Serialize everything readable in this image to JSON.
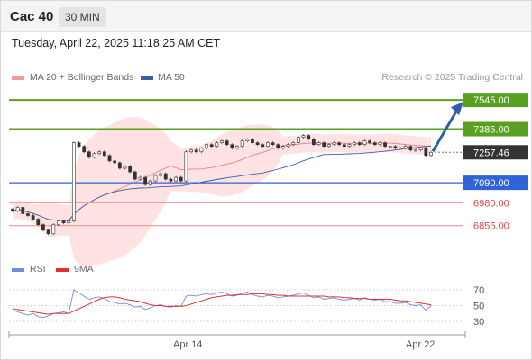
{
  "header": {
    "instrument": "Cac 40",
    "timeframe": "30 MIN"
  },
  "datetime": "Tuesday, April 22, 2025 11:18:25 AM CET",
  "legend": {
    "ma20": "MA 20 + Bollinger Bands",
    "ma50": "MA 50"
  },
  "credit": "Research © 2025 Trading Central",
  "rsi_legend": {
    "rsi": "RSI",
    "ma9": "9MA"
  },
  "colors": {
    "green": "#5aa020",
    "blue": "#2f63d6",
    "red": "#e54545",
    "current": "#333333",
    "band": "#ffdede",
    "ma50": "#3a5fa6",
    "rsi": "#6f8de0",
    "ma9": "#e03030"
  },
  "chart_data": [
    {
      "type": "candlestick",
      "title": "Cac 40",
      "ylim": [
        6680,
        7620
      ],
      "levels": [
        {
          "label": "7545.00",
          "value": 7545,
          "style": "green"
        },
        {
          "label": "7385.00",
          "value": 7385,
          "style": "green"
        },
        {
          "label": "7257.46",
          "value": 7257.46,
          "style": "current"
        },
        {
          "label": "7090.00",
          "value": 7090,
          "style": "blue"
        },
        {
          "label": "6980.00",
          "value": 6980,
          "style": "red"
        },
        {
          "label": "6855.00",
          "value": 6855,
          "style": "red"
        }
      ],
      "closes": [
        6935,
        6955,
        6920,
        6910,
        6890,
        6860,
        6830,
        6810,
        6860,
        6880,
        6870,
        6880,
        7310,
        7290,
        7260,
        7230,
        7250,
        7260,
        7240,
        7210,
        7200,
        7170,
        7180,
        7150,
        7110,
        7120,
        7080,
        7100,
        7130,
        7140,
        7110,
        7100,
        7120,
        7100,
        7260,
        7270,
        7260,
        7280,
        7300,
        7290,
        7310,
        7320,
        7300,
        7280,
        7290,
        7320,
        7330,
        7310,
        7300,
        7290,
        7310,
        7300,
        7280,
        7290,
        7300,
        7310,
        7340,
        7350,
        7330,
        7300,
        7310,
        7290,
        7300,
        7310,
        7300,
        7290,
        7300,
        7310,
        7300,
        7320,
        7310,
        7300,
        7310,
        7290,
        7290,
        7280,
        7280,
        7290,
        7270,
        7270,
        7280,
        7240,
        7257.46
      ],
      "x_ticks": [
        "Apr 14",
        "Apr 22"
      ]
    },
    {
      "type": "line",
      "title": "RSI",
      "series": [
        {
          "name": "RSI"
        },
        {
          "name": "9MA"
        }
      ],
      "ylim": [
        30,
        70
      ],
      "ticks": [
        70,
        50,
        30
      ],
      "rsi": [
        44,
        42,
        40,
        38,
        40,
        36,
        35,
        37,
        40,
        41,
        42,
        40,
        70,
        66,
        62,
        58,
        60,
        61,
        59,
        55,
        54,
        52,
        53,
        51,
        48,
        49,
        45,
        47,
        50,
        51,
        49,
        48,
        50,
        49,
        62,
        63,
        62,
        64,
        65,
        64,
        66,
        67,
        65,
        62,
        63,
        66,
        67,
        64,
        62,
        61,
        63,
        62,
        60,
        61,
        62,
        63,
        65,
        66,
        63,
        60,
        61,
        58,
        59,
        60,
        58,
        57,
        58,
        59,
        57,
        60,
        58,
        57,
        58,
        55,
        55,
        53,
        53,
        54,
        51,
        50,
        51,
        44,
        50
      ],
      "ma9": [
        46,
        45,
        44,
        43,
        42,
        41,
        40,
        39,
        40,
        40,
        40,
        40,
        43,
        46,
        49,
        52,
        55,
        58,
        60,
        61,
        61,
        60,
        58,
        57,
        56,
        55,
        53,
        51,
        50,
        50,
        49,
        49,
        49,
        49,
        50,
        52,
        54,
        56,
        58,
        60,
        61,
        62,
        63,
        63,
        64,
        64,
        64,
        65,
        65,
        65,
        64,
        64,
        63,
        63,
        62,
        62,
        62,
        62,
        62,
        62,
        62,
        62,
        61,
        61,
        61,
        60,
        60,
        59,
        59,
        59,
        58,
        58,
        58,
        58,
        58,
        57,
        56,
        56,
        55,
        54,
        53,
        52,
        51
      ]
    }
  ]
}
